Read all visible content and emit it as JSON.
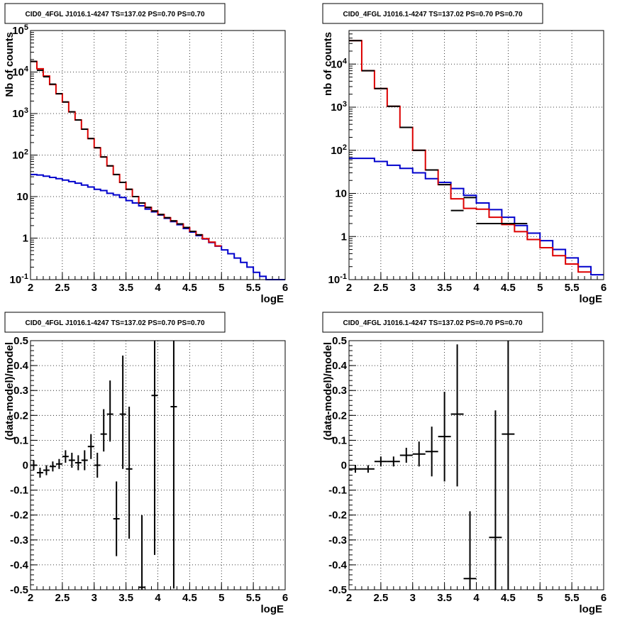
{
  "chart_data": [
    {
      "type": "line",
      "title": "CID0_4FGL J1016.1-4247 TS=137.02 PS=0.70 PS=0.70",
      "xlabel": "logE",
      "ylabel": "Nb of counts",
      "log_y": true,
      "xlim": [
        2,
        6
      ],
      "ylim": [
        0.1,
        100000
      ],
      "grid": true,
      "x_ticks": [
        "2",
        "2.5",
        "3",
        "3.5",
        "4",
        "4.5",
        "5",
        "5.5",
        "6"
      ],
      "y_ticks": [
        "10^-1",
        "1",
        "10",
        "10^2",
        "10^3",
        "10^4",
        "10^5"
      ],
      "y_ticks_pow": [
        -1,
        0,
        1,
        2,
        3,
        4,
        5
      ],
      "bin_width": 0.1,
      "series": [
        {
          "color": "#0000cc",
          "style": "step",
          "x": [
            2.0,
            2.1,
            2.2,
            2.3,
            2.4,
            2.5,
            2.6,
            2.7,
            2.8,
            2.9,
            3.0,
            3.1,
            3.2,
            3.3,
            3.4,
            3.5,
            3.6,
            3.7,
            3.8,
            3.9,
            4.0,
            4.1,
            4.2,
            4.3,
            4.4,
            4.5,
            4.6,
            4.7,
            4.8,
            4.9,
            5.0,
            5.1,
            5.2,
            5.3,
            5.4,
            5.5,
            5.6,
            5.7,
            5.8,
            5.9
          ],
          "values": [
            34,
            33,
            31,
            29,
            27,
            25,
            23,
            21,
            19,
            17,
            15,
            14,
            12,
            11,
            9.5,
            8,
            7,
            6,
            5,
            4.3,
            3.6,
            3.0,
            2.5,
            2.1,
            1.7,
            1.4,
            1.15,
            0.95,
            0.78,
            0.64,
            0.52,
            0.42,
            0.33,
            0.26,
            0.2,
            0.15,
            0.12,
            0.1,
            0.1,
            0.1
          ]
        },
        {
          "color": "#dd0000",
          "style": "step",
          "x": [
            2.0,
            2.1,
            2.2,
            2.3,
            2.4,
            2.5,
            2.6,
            2.7,
            2.8,
            2.9,
            3.0,
            3.1,
            3.2,
            3.3,
            3.4,
            3.5,
            3.6,
            3.7,
            3.8,
            3.9,
            4.0,
            4.1,
            4.2,
            4.3,
            4.4,
            4.5,
            4.6,
            4.7,
            4.8,
            4.9
          ],
          "values": [
            18000,
            12000,
            8000,
            5000,
            3000,
            1900,
            1100,
            700,
            420,
            250,
            150,
            90,
            55,
            34,
            22,
            15,
            10,
            7,
            5.5,
            4.5,
            3.7,
            3.1,
            2.6,
            2.2,
            1.8,
            1.45,
            1.2,
            0.97,
            0.8,
            0.65
          ]
        }
      ],
      "points": {
        "color": "#000000",
        "x": [
          2.05,
          2.15,
          2.25,
          2.35,
          2.45,
          2.55,
          2.65,
          2.75,
          2.85,
          2.95,
          3.05,
          3.15,
          3.25,
          3.35,
          3.45,
          3.55,
          3.65,
          3.75,
          3.85,
          3.95,
          4.05,
          4.15,
          4.25,
          4.35,
          4.45,
          4.55,
          4.65
        ],
        "y": [
          18000,
          11000,
          7700,
          5100,
          3000,
          1900,
          1100,
          700,
          420,
          250,
          150,
          90,
          55,
          34,
          22,
          15,
          10,
          7,
          5.5,
          4.5,
          3.7,
          3.1,
          2.6,
          2.2,
          1.8,
          1.45,
          1.2
        ],
        "yerr_lo": [
          0,
          0,
          0,
          0,
          0,
          0,
          0,
          0,
          0,
          0,
          0,
          0,
          0,
          0,
          0,
          0,
          0,
          0,
          0,
          0,
          0,
          0,
          0,
          0,
          0,
          0,
          0
        ],
        "yerr_hi": [
          0,
          0,
          0,
          0,
          0,
          0,
          0,
          0,
          0,
          0,
          0,
          0,
          0,
          0,
          0,
          0,
          0,
          0,
          0,
          0,
          0,
          0,
          0,
          0,
          0,
          0,
          0
        ]
      }
    },
    {
      "type": "line",
      "title": "CID0_4FGL J1016.1-4247 TS=137.02 PS=0.70 PS=0.70",
      "xlabel": "logE",
      "ylabel": "nb of counts",
      "log_y": true,
      "xlim": [
        2,
        6
      ],
      "ylim": [
        0.1,
        60000
      ],
      "grid": true,
      "x_ticks": [
        "2",
        "2.5",
        "3",
        "3.5",
        "4",
        "4.5",
        "5",
        "5.5",
        "6"
      ],
      "y_ticks": [
        "10^-1",
        "1",
        "10",
        "10^2",
        "10^3",
        "10^4"
      ],
      "y_ticks_pow": [
        -1,
        0,
        1,
        2,
        3,
        4
      ],
      "bin_width": 0.2,
      "series": [
        {
          "color": "#0000cc",
          "style": "step",
          "x": [
            2.0,
            2.2,
            2.4,
            2.6,
            2.8,
            3.0,
            3.2,
            3.4,
            3.6,
            3.8,
            4.0,
            4.2,
            4.4,
            4.6,
            4.8,
            5.0,
            5.2,
            5.4,
            5.6,
            5.8
          ],
          "values": [
            65,
            65,
            55,
            45,
            38,
            30,
            22,
            18,
            13,
            9,
            6,
            4.2,
            2.8,
            1.8,
            1.2,
            0.8,
            0.5,
            0.32,
            0.2,
            0.13
          ]
        },
        {
          "color": "#dd0000",
          "style": "step",
          "x": [
            2.0,
            2.2,
            2.4,
            2.6,
            2.8,
            3.0,
            3.2,
            3.4,
            3.6,
            3.8,
            4.0,
            4.2,
            4.4,
            4.6,
            4.8,
            5.0,
            5.2,
            5.4,
            5.6
          ],
          "values": [
            35000,
            7000,
            2700,
            1050,
            340,
            100,
            35,
            16,
            7.5,
            4.5,
            4.3,
            2.8,
            1.9,
            1.3,
            0.85,
            0.55,
            0.36,
            0.23,
            0.15
          ]
        }
      ],
      "points": {
        "color": "#000000",
        "x": [
          2.1,
          2.3,
          2.5,
          2.7,
          2.9,
          3.1,
          3.3,
          3.5,
          3.7,
          3.9,
          4.1,
          4.3,
          4.5,
          4.7
        ],
        "y": [
          35000,
          7000,
          2700,
          1050,
          340,
          100,
          35,
          16,
          4,
          8,
          2,
          2,
          2,
          2
        ],
        "yerr_lo": [
          0,
          0,
          0,
          0,
          0,
          0,
          0,
          0,
          0,
          0,
          0,
          0,
          0,
          0
        ],
        "yerr_hi": [
          0,
          0,
          0,
          0,
          0,
          0,
          0,
          0,
          0,
          0,
          0,
          0,
          0,
          0
        ]
      }
    },
    {
      "type": "scatter",
      "title": "CID0_4FGL J1016.1-4247 TS=137.02 PS=0.70 PS=0.70",
      "xlabel": "logE",
      "ylabel": "(data-model)/model",
      "log_y": false,
      "xlim": [
        2,
        6
      ],
      "ylim": [
        -0.5,
        0.5
      ],
      "grid": true,
      "x_ticks": [
        "2",
        "2.5",
        "3",
        "3.5",
        "4",
        "4.5",
        "5",
        "5.5",
        "6"
      ],
      "y_ticks": [
        "-0.5",
        "-0.4",
        "-0.3",
        "-0.2",
        "-0.1",
        "0",
        "0.1",
        "0.2",
        "0.3",
        "0.4",
        "0.5"
      ],
      "bin_width": 0.1,
      "points": {
        "color": "#000000",
        "x": [
          2.05,
          2.15,
          2.25,
          2.35,
          2.45,
          2.55,
          2.65,
          2.75,
          2.85,
          2.95,
          3.05,
          3.15,
          3.25,
          3.35,
          3.45,
          3.55,
          3.75,
          3.95,
          4.25
        ],
        "y": [
          0.0,
          -0.03,
          -0.02,
          -0.005,
          0.005,
          0.035,
          0.02,
          0.01,
          0.02,
          0.075,
          0.0,
          0.125,
          0.205,
          -0.215,
          0.205,
          -0.015,
          -0.49,
          0.28,
          0.235
        ],
        "yerr_lo": [
          0.02,
          0.02,
          0.02,
          0.02,
          0.02,
          0.025,
          0.03,
          0.03,
          0.04,
          0.05,
          0.05,
          0.07,
          0.11,
          0.15,
          0.22,
          0.28,
          0.29,
          0.64,
          0.73
        ],
        "yerr_hi": [
          0.02,
          0.02,
          0.02,
          0.02,
          0.02,
          0.025,
          0.03,
          0.03,
          0.04,
          0.05,
          0.05,
          0.1,
          0.135,
          0.15,
          0.235,
          0.25,
          0.29,
          0.24,
          0.28
        ]
      }
    },
    {
      "type": "scatter",
      "title": "CID0_4FGL J1016.1-4247 TS=137.02 PS=0.70 PS=0.70",
      "xlabel": "logE",
      "ylabel": "(data-model)/model",
      "log_y": false,
      "xlim": [
        2,
        6
      ],
      "ylim": [
        -0.5,
        0.5
      ],
      "grid": true,
      "x_ticks": [
        "2",
        "2.5",
        "3",
        "3.5",
        "4",
        "4.5",
        "5",
        "5.5",
        "6"
      ],
      "y_ticks": [
        "-0.5",
        "-0.4",
        "-0.3",
        "-0.2",
        "-0.1",
        "0",
        "0.1",
        "0.2",
        "0.3",
        "0.4",
        "0.5"
      ],
      "bin_width": 0.2,
      "points": {
        "color": "#000000",
        "x": [
          2.1,
          2.3,
          2.5,
          2.7,
          2.9,
          3.1,
          3.3,
          3.5,
          3.7,
          3.9,
          4.3,
          4.5
        ],
        "y": [
          -0.015,
          -0.015,
          0.015,
          0.015,
          0.04,
          0.045,
          0.055,
          0.115,
          0.205,
          -0.455,
          -0.29,
          0.125
        ],
        "yerr_lo": [
          0.015,
          0.015,
          0.02,
          0.02,
          0.03,
          0.05,
          0.1,
          0.18,
          0.29,
          0.05,
          0.21,
          0.63
        ],
        "yerr_hi": [
          0.015,
          0.015,
          0.02,
          0.02,
          0.03,
          0.05,
          0.1,
          0.18,
          0.28,
          0.27,
          0.51,
          0.38
        ]
      }
    }
  ]
}
